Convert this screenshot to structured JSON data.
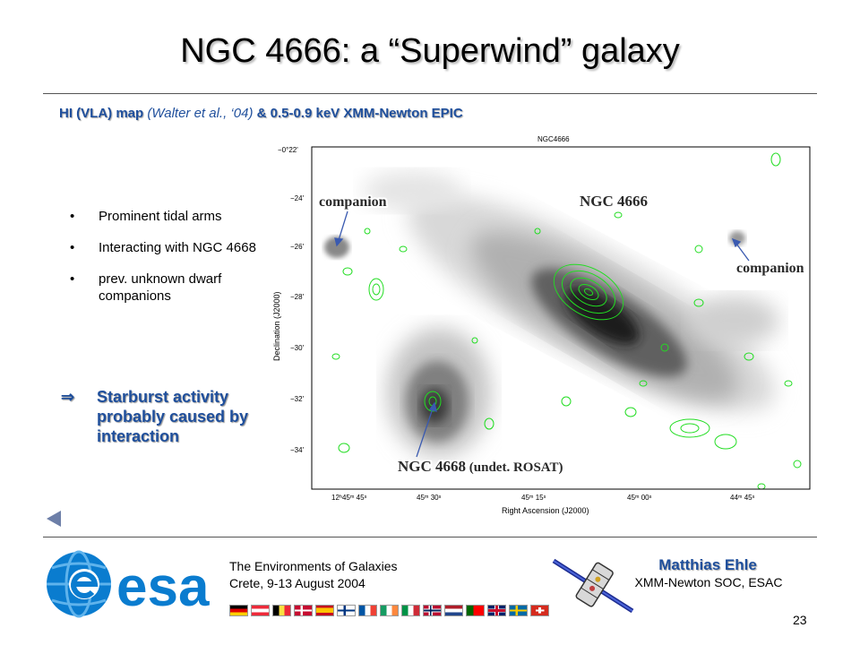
{
  "slide": {
    "title": "NGC 4666: a “Superwind” galaxy",
    "subtitle": {
      "part1": "HI (VLA) map",
      "part2": " (Walter et al., ‘04) ",
      "part3": "& 0.5-0.9 keV XMM-Newton EPIC"
    },
    "bullets": [
      "Prominent tidal arms",
      "Interacting with NGC 4668",
      "prev. unknown dwarf companions"
    ],
    "bullet_symbol": "•",
    "conclusion": {
      "arrow": "⇒",
      "line1": "Starburst activity",
      "line2": "probably caused by",
      "line3": "interaction"
    },
    "page_number": "23"
  },
  "figure": {
    "header": "NGC4666",
    "xlabel": "Right Ascension (J2000)",
    "ylabel": "Declination (J2000)",
    "y_ticks": [
      "−0°22'",
      "−24'",
      "−26'",
      "−28'",
      "−30'",
      "−32'",
      "−34'"
    ],
    "x_ticks": [
      "12ʰ45ᵐ 45ˢ",
      "45ᵐ 30ˢ",
      "45ᵐ 15ˢ",
      "45ᵐ 00ˢ",
      "44ᵐ 45ˢ"
    ],
    "labels": {
      "companion_left": "companion",
      "ngc4666": "NGC 4666",
      "companion_right": "companion",
      "ngc4668_main": "NGC 4668",
      "ngc4668_note": " (undet. ROSAT)"
    },
    "contour_color": "#22dd22"
  },
  "footer": {
    "event_line1": "The Environments of Galaxies",
    "event_line2": "Crete, 9-13 August 2004",
    "author": "Matthias Ehle",
    "affiliation": "XMM-Newton SOC, ESAC",
    "logo_text": "esa",
    "logo_icon": "esa-globe-icon",
    "satellite_icon": "xmm-newton-satellite-icon",
    "flag_icons": [
      "germany",
      "austria",
      "belgium",
      "denmark",
      "spain",
      "finland",
      "france",
      "ireland",
      "italy",
      "norway",
      "netherlands",
      "portugal",
      "uk",
      "sweden",
      "switzerland"
    ]
  },
  "colors": {
    "accent_blue": "#1f4f9c",
    "esa_blue": "#0a7ccf",
    "contour_green": "#22dd22"
  }
}
